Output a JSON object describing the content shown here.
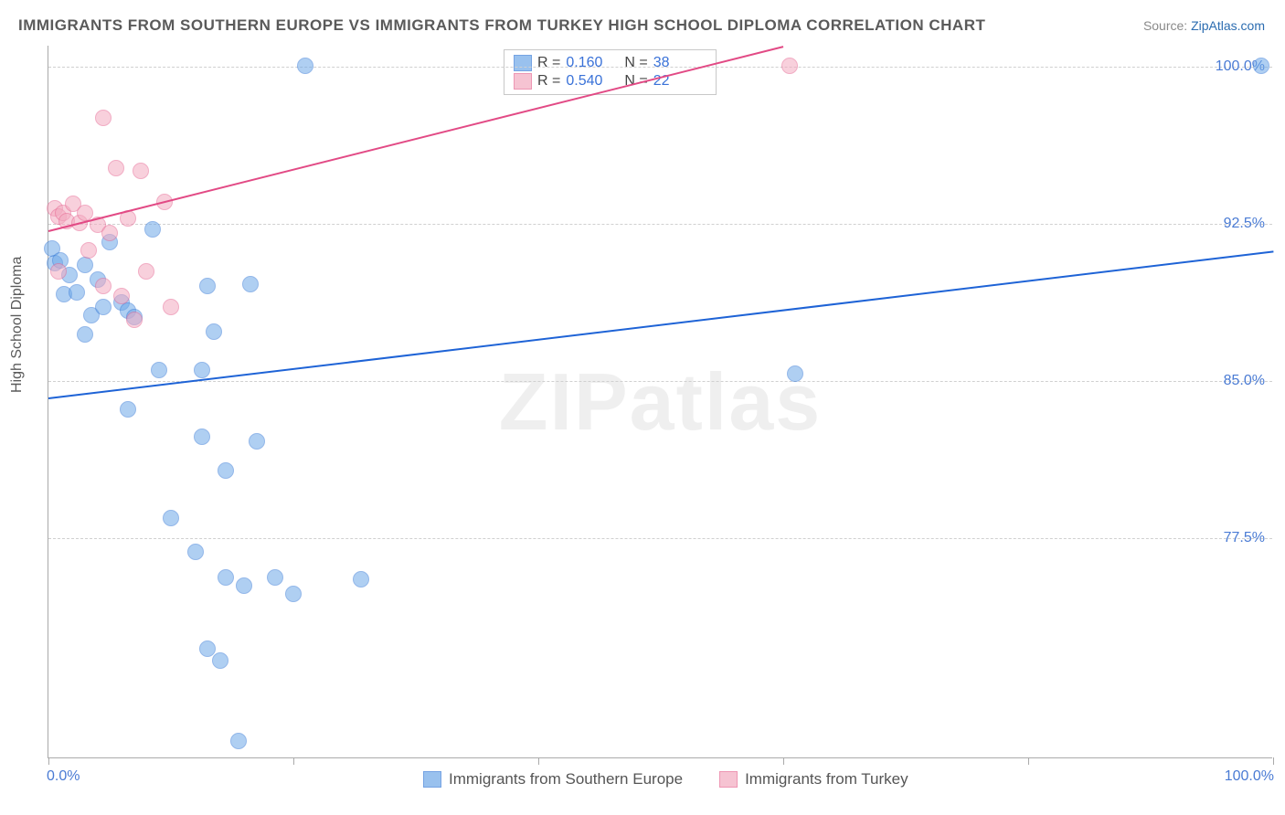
{
  "title": "IMMIGRANTS FROM SOUTHERN EUROPE VS IMMIGRANTS FROM TURKEY HIGH SCHOOL DIPLOMA CORRELATION CHART",
  "source_prefix": "Source: ",
  "source_link": "ZipAtlas.com",
  "ylabel": "High School Diploma",
  "watermark": "ZIPatlas",
  "chart": {
    "type": "scatter",
    "xlim": [
      0,
      100
    ],
    "ylim": [
      67,
      101
    ],
    "y_ticks": [
      77.5,
      85.0,
      92.5,
      100.0
    ],
    "y_tick_labels": [
      "77.5%",
      "85.0%",
      "92.5%",
      "100.0%"
    ],
    "x_ticks": [
      0,
      20,
      40,
      60,
      80,
      100
    ],
    "x_min_label": "0.0%",
    "x_max_label": "100.0%",
    "grid_color": "#d0d0d0",
    "background_color": "#ffffff",
    "axis_color": "#aaaaaa",
    "marker_radius": 9,
    "marker_opacity": 0.55,
    "trend_width": 2
  },
  "series": [
    {
      "name": "Immigrants from Southern Europe",
      "color": "#6ea8e8",
      "stroke": "#3b7dd8",
      "r": "0.160",
      "n": "38",
      "trend": {
        "x1": 0,
        "y1": 84.2,
        "x2": 100,
        "y2": 91.2,
        "color": "#1e63d6"
      },
      "points": [
        {
          "x": 0.3,
          "y": 91.3
        },
        {
          "x": 0.5,
          "y": 90.6
        },
        {
          "x": 1.0,
          "y": 90.7
        },
        {
          "x": 1.3,
          "y": 89.1
        },
        {
          "x": 1.7,
          "y": 90.0
        },
        {
          "x": 2.3,
          "y": 89.2
        },
        {
          "x": 3.0,
          "y": 90.5
        },
        {
          "x": 3.5,
          "y": 88.1
        },
        {
          "x": 4.0,
          "y": 89.8
        },
        {
          "x": 4.5,
          "y": 88.5
        },
        {
          "x": 5.0,
          "y": 91.6
        },
        {
          "x": 6.0,
          "y": 88.7
        },
        {
          "x": 6.5,
          "y": 88.3
        },
        {
          "x": 7.0,
          "y": 88.0
        },
        {
          "x": 8.5,
          "y": 92.2
        },
        {
          "x": 3.0,
          "y": 87.2
        },
        {
          "x": 13.0,
          "y": 89.5
        },
        {
          "x": 16.5,
          "y": 89.6
        },
        {
          "x": 9.0,
          "y": 85.5
        },
        {
          "x": 12.5,
          "y": 85.5
        },
        {
          "x": 13.5,
          "y": 87.3
        },
        {
          "x": 6.5,
          "y": 83.6
        },
        {
          "x": 12.5,
          "y": 82.3
        },
        {
          "x": 17.0,
          "y": 82.1
        },
        {
          "x": 14.5,
          "y": 80.7
        },
        {
          "x": 10.0,
          "y": 78.4
        },
        {
          "x": 12.0,
          "y": 76.8
        },
        {
          "x": 14.5,
          "y": 75.6
        },
        {
          "x": 16.0,
          "y": 75.2
        },
        {
          "x": 18.5,
          "y": 75.6
        },
        {
          "x": 20.0,
          "y": 74.8
        },
        {
          "x": 25.5,
          "y": 75.5
        },
        {
          "x": 13.0,
          "y": 72.2
        },
        {
          "x": 14.0,
          "y": 71.6
        },
        {
          "x": 15.5,
          "y": 67.8
        },
        {
          "x": 21.0,
          "y": 100.0
        },
        {
          "x": 61.0,
          "y": 85.3
        },
        {
          "x": 99.0,
          "y": 100.0
        }
      ]
    },
    {
      "name": "Immigrants from Turkey",
      "color": "#f3aac0",
      "stroke": "#e76a94",
      "r": "0.540",
      "n": "22",
      "trend": {
        "x1": 0,
        "y1": 92.2,
        "x2": 60,
        "y2": 101.0,
        "color": "#e24a85"
      },
      "points": [
        {
          "x": 0.5,
          "y": 93.2
        },
        {
          "x": 0.8,
          "y": 92.8
        },
        {
          "x": 1.2,
          "y": 93.0
        },
        {
          "x": 1.5,
          "y": 92.6
        },
        {
          "x": 2.0,
          "y": 93.4
        },
        {
          "x": 2.5,
          "y": 92.5
        },
        {
          "x": 3.0,
          "y": 93.0
        },
        {
          "x": 3.3,
          "y": 91.2
        },
        {
          "x": 4.0,
          "y": 92.4
        },
        {
          "x": 4.5,
          "y": 89.5
        },
        {
          "x": 5.0,
          "y": 92.0
        },
        {
          "x": 5.5,
          "y": 95.1
        },
        {
          "x": 6.0,
          "y": 89.0
        },
        {
          "x": 6.5,
          "y": 92.7
        },
        {
          "x": 7.0,
          "y": 87.9
        },
        {
          "x": 7.5,
          "y": 95.0
        },
        {
          "x": 8.0,
          "y": 90.2
        },
        {
          "x": 9.5,
          "y": 93.5
        },
        {
          "x": 10.0,
          "y": 88.5
        },
        {
          "x": 4.5,
          "y": 97.5
        },
        {
          "x": 0.8,
          "y": 90.2
        },
        {
          "x": 60.5,
          "y": 100.0
        }
      ]
    }
  ]
}
